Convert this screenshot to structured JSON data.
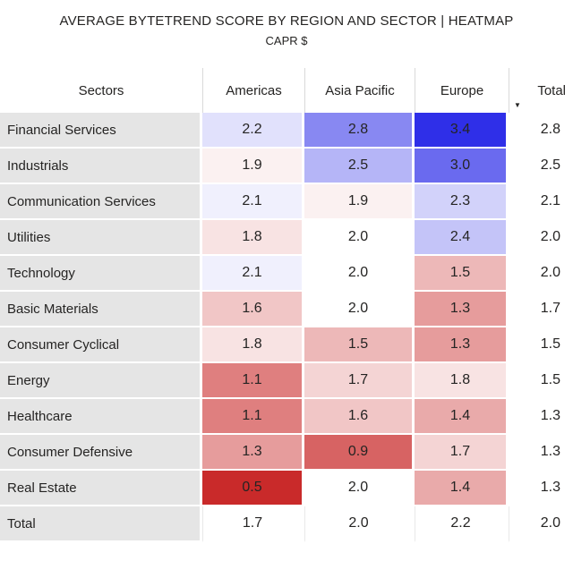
{
  "chart_data": {
    "type": "heatmap",
    "title": "AVERAGE BYTETREND SCORE BY REGION AND SECTOR | HEATMAP",
    "subtitle": "CAPR $",
    "row_header_label": "Sectors",
    "columns": [
      "Americas",
      "Asia Pacific",
      "Europe",
      "Total"
    ],
    "colored_columns": [
      "Americas",
      "Asia Pacific",
      "Europe"
    ],
    "rows": [
      {
        "sector": "Financial Services",
        "values": [
          2.2,
          2.8,
          3.4
        ],
        "total": 2.8
      },
      {
        "sector": "Industrials",
        "values": [
          1.9,
          2.5,
          3.0
        ],
        "total": 2.5
      },
      {
        "sector": "Communication Services",
        "values": [
          2.1,
          1.9,
          2.3
        ],
        "total": 2.1
      },
      {
        "sector": "Utilities",
        "values": [
          1.8,
          2.0,
          2.4
        ],
        "total": 2.0
      },
      {
        "sector": "Technology",
        "values": [
          2.1,
          2.0,
          1.5
        ],
        "total": 2.0
      },
      {
        "sector": "Basic Materials",
        "values": [
          1.6,
          2.0,
          1.3
        ],
        "total": 1.7
      },
      {
        "sector": "Consumer Cyclical",
        "values": [
          1.8,
          1.5,
          1.3
        ],
        "total": 1.5
      },
      {
        "sector": "Energy",
        "values": [
          1.1,
          1.7,
          1.8
        ],
        "total": 1.5
      },
      {
        "sector": "Healthcare",
        "values": [
          1.1,
          1.6,
          1.4
        ],
        "total": 1.3
      },
      {
        "sector": "Consumer Defensive",
        "values": [
          1.3,
          0.9,
          1.7
        ],
        "total": 1.3
      },
      {
        "sector": "Real Estate",
        "values": [
          0.5,
          2.0,
          1.4
        ],
        "total": 1.3
      }
    ],
    "total_row": {
      "label": "Total",
      "values": [
        1.7,
        2.0,
        2.2
      ],
      "total": 2.0
    },
    "value_format": "0.0",
    "color_scale": {
      "type": "diverging",
      "min": 0.5,
      "mid": 2.0,
      "max": 3.4,
      "min_color": "#c92a2a",
      "mid_color": "#ffffff",
      "max_color": "#2f2fe8"
    }
  },
  "sort": {
    "column": "Total",
    "direction": "descending",
    "icon": "▼"
  },
  "colors": {
    "background": "#ffffff",
    "text": "#252423",
    "sector_column_bg": "#e5e5e5",
    "header_divider": "#d9d9d9",
    "grand_row_divider": "#e8e8e8"
  }
}
